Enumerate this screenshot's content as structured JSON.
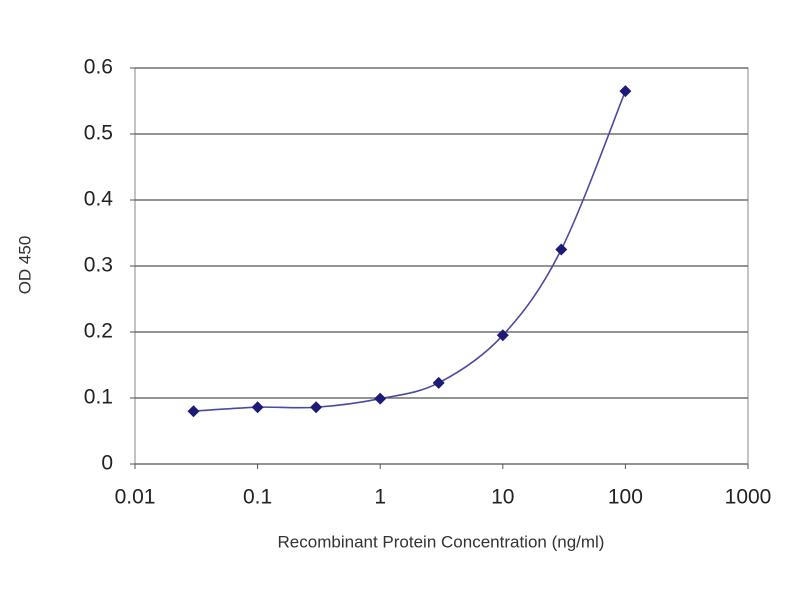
{
  "chart_data": {
    "type": "scatter",
    "x_label": "Recombinant Protein Concentration (ng/ml)",
    "y_label": "OD 450",
    "x": [
      0.03,
      0.1,
      0.3,
      1,
      3,
      10,
      30,
      100
    ],
    "values": [
      0.08,
      0.086,
      0.086,
      0.099,
      0.123,
      0.195,
      0.325,
      0.565
    ],
    "color": "#1c1c78",
    "line_color": "#4a4aa0",
    "xscale": "log",
    "xlim": [
      0.01,
      1000
    ],
    "xticks": [
      0.01,
      0.1,
      1,
      10,
      100,
      1000
    ],
    "ylim": [
      0,
      0.6
    ],
    "yticks": [
      0,
      0.1,
      0.2,
      0.3,
      0.4,
      0.5,
      0.6
    ],
    "grid": "y"
  }
}
